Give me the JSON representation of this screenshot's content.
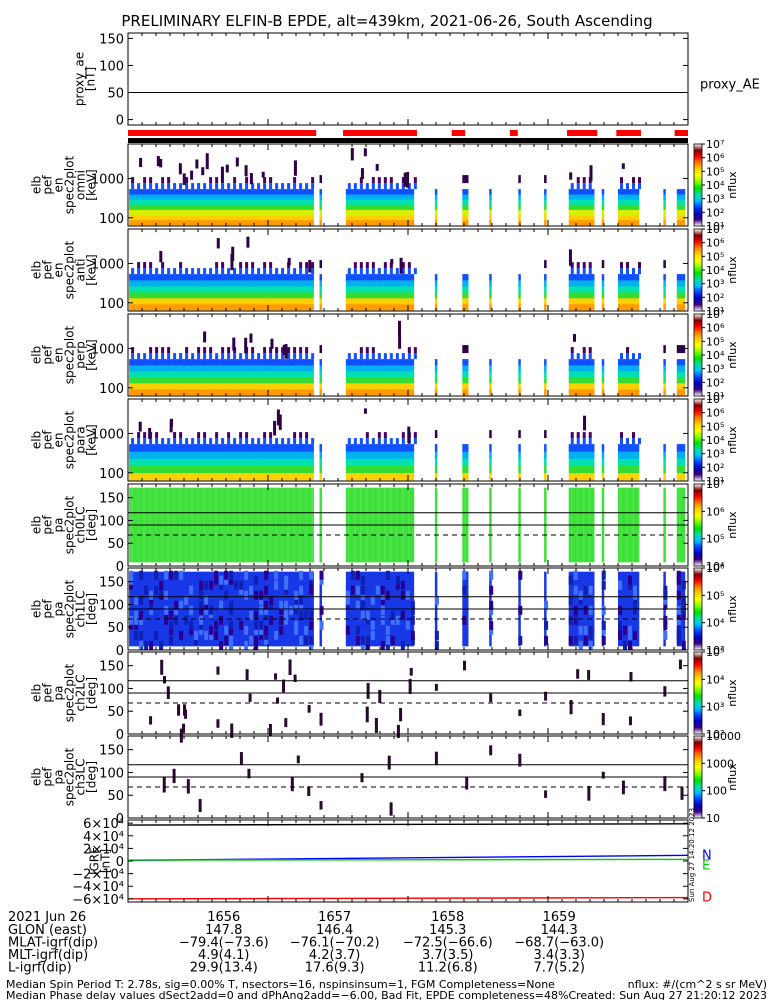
{
  "chart_data": {
    "type": "heatmap",
    "title": "PRELIMINARY ELFIN-B EPDE, alt=439km, 2021-06-26, South Ascending",
    "x_time_labels": [
      "1656",
      "1657",
      "1658",
      "1659"
    ],
    "proxy_ae": {
      "ylabel_lines": [
        "proxy_ae",
        "[nT]"
      ],
      "ticks": [
        "150",
        "100",
        "50",
        "0"
      ],
      "ylim": [
        -10,
        160
      ],
      "value": 50,
      "legend": "proxy_AE",
      "line_color": "#000000"
    },
    "coverage_bar": {
      "color": "#ff0000",
      "segments": [
        [
          0.0,
          0.336
        ],
        [
          0.384,
          0.516
        ],
        [
          0.578,
          0.602
        ],
        [
          0.682,
          0.696
        ],
        [
          0.784,
          0.838
        ],
        [
          0.872,
          0.916
        ],
        [
          0.976,
          1.0
        ]
      ]
    },
    "data_segments": [
      [
        0.002,
        0.332
      ],
      [
        0.342,
        0.343
      ],
      [
        0.389,
        0.511
      ],
      [
        0.548,
        0.551
      ],
      [
        0.597,
        0.608
      ],
      [
        0.645,
        0.648
      ],
      [
        0.697,
        0.7
      ],
      [
        0.743,
        0.746
      ],
      [
        0.787,
        0.833
      ],
      [
        0.846,
        0.849
      ],
      [
        0.875,
        0.913
      ],
      [
        0.956,
        0.959
      ],
      [
        0.98,
        0.995
      ]
    ],
    "energy_panels": [
      {
        "ylabel_lines": [
          "elb",
          "pef",
          "en",
          "spec2plot",
          "omni",
          "[keV]"
        ],
        "ticks": [
          "1000",
          "100"
        ],
        "cb_ticks": [
          "10⁷",
          "10⁶",
          "10⁵",
          "10⁴",
          "10³",
          "10²",
          "10¹"
        ],
        "cb_label": "nflux",
        "layers": [
          "#ff9a00",
          "#ffd000",
          "#d8f000",
          "#33dd33",
          "#00e0b0",
          "#00b0f0",
          "#1050ff"
        ],
        "speckle": 0.09
      },
      {
        "ylabel_lines": [
          "elb",
          "pef",
          "en",
          "spec2plot",
          "anti",
          "[keV]"
        ],
        "ticks": [
          "1000",
          "100"
        ],
        "cb_ticks": [
          "10⁷",
          "10⁶",
          "10⁵",
          "10⁴",
          "10³",
          "10²",
          "10¹"
        ],
        "cb_label": "nflux",
        "layers": [
          "#ff9a00",
          "#ffd000",
          "#33dd33",
          "#00e0b0",
          "#00b0f0",
          "#1050ff"
        ],
        "speckle": 0.04
      },
      {
        "ylabel_lines": [
          "elb",
          "pef",
          "en",
          "spec2plot",
          "perp",
          "[keV]"
        ],
        "ticks": [
          "1000",
          "100"
        ],
        "cb_ticks": [
          "10⁷",
          "10⁶",
          "10⁵",
          "10⁴",
          "10³",
          "10²",
          "10¹"
        ],
        "cb_label": "nflux",
        "layers": [
          "#ff9a00",
          "#ffd000",
          "#33dd33",
          "#00e0b0",
          "#00b0f0",
          "#1050ff"
        ],
        "speckle": 0.04
      },
      {
        "ylabel_lines": [
          "elb",
          "pef",
          "en",
          "spec2plot",
          "para",
          "[keV]"
        ],
        "ticks": [
          "1000",
          "100"
        ],
        "cb_ticks": [
          "10⁷",
          "10⁶",
          "10⁵",
          "10⁴",
          "10³",
          "10²",
          "10¹"
        ],
        "cb_label": "nflux",
        "layers": [
          "#ffd000",
          "#33dd33",
          "#00e0b0",
          "#00b0f0",
          "#1050ff"
        ],
        "speckle": 0.04
      }
    ],
    "pitch_panels": [
      {
        "ylabel_lines": [
          "elb",
          "pef",
          "pa",
          "spec2plot",
          "ch0LC",
          "[deg]"
        ],
        "ticks": [
          "150",
          "100",
          "50",
          "0"
        ],
        "ylim": [
          0,
          180
        ],
        "cb_ticks": [
          "10⁷",
          "10⁶",
          "10⁵",
          "10⁴"
        ],
        "cb_label": "nflux",
        "fill": "#3fe03a",
        "style": "solid"
      },
      {
        "ylabel_lines": [
          "elb",
          "pef",
          "pa",
          "spec2plot",
          "ch1LC",
          "[deg]"
        ],
        "ticks": [
          "150",
          "100",
          "50",
          "0"
        ],
        "ylim": [
          0,
          180
        ],
        "cb_ticks": [
          "10⁶",
          "10⁵",
          "10⁴",
          "10³"
        ],
        "cb_label": "nflux",
        "fill": "#1838e8",
        "style": "mottled"
      },
      {
        "ylabel_lines": [
          "elb",
          "pef",
          "pa",
          "spec2plot",
          "ch2LC",
          "[deg]"
        ],
        "ticks": [
          "150",
          "100",
          "50",
          "0"
        ],
        "ylim": [
          0,
          180
        ],
        "cb_ticks": [
          "10⁵",
          "10⁴",
          "10³",
          "10²"
        ],
        "cb_label": "nflux",
        "fill": "#2a0830",
        "style": "sparse"
      },
      {
        "ylabel_lines": [
          "elb",
          "pef",
          "pa",
          "spec2plot",
          "ch3LC",
          "[deg]"
        ],
        "ticks": [
          "150",
          "100",
          "50",
          "0"
        ],
        "ylim": [
          0,
          180
        ],
        "cb_ticks": [
          "10000",
          "1000",
          "100",
          "10"
        ],
        "cb_label": "nflux",
        "fill": "#2a0830",
        "style": "veryspare"
      }
    ],
    "pitch_lines": {
      "solid": [
        90,
        117
      ],
      "dashed": 68
    },
    "igrf": {
      "ylabel_lines": [
        "IGRF",
        "[nT]"
      ],
      "ticks": [
        "6×10⁴",
        "4×10⁴",
        "2×10⁴",
        "0",
        "−2×10⁴",
        "−4×10⁴",
        "−6×10⁴"
      ],
      "ylim": [
        -65000,
        65000
      ],
      "series": [
        {
          "name": "N",
          "color": "#0000ff",
          "values_start_end": [
            1000,
            9000
          ]
        },
        {
          "name": "E",
          "color": "#00cc00",
          "values_start_end": [
            1500,
            2500
          ]
        },
        {
          "name": "D",
          "color": "#ff0000",
          "values_start_end": [
            -60000,
            -58000
          ]
        },
        {
          "color": "#000000",
          "values_start_end": [
            57000,
            59000
          ]
        }
      ],
      "vertical_stamp": "Sun Aug 27 14:20:12 2023"
    },
    "colorbar_gradient": [
      "#ffffff",
      "#800000",
      "#ff0000",
      "#ff8000",
      "#ffd000",
      "#ffff00",
      "#80ff00",
      "#00e000",
      "#00e0a0",
      "#00c0ff",
      "#0040ff",
      "#0000c0",
      "#400080",
      "#ffffff"
    ]
  },
  "footer": {
    "date_label": "2021 Jun 26",
    "rows": [
      {
        "label": "GLON (east)",
        "values": [
          "147.8",
          "146.4",
          "145.3",
          "144.3"
        ]
      },
      {
        "label": "MLAT-igrf(dip)",
        "values": [
          "−79.4(−73.6)",
          "−76.1(−70.2)",
          "−72.5(−66.6)",
          "−68.7(−63.0)"
        ]
      },
      {
        "label": "MLT-igrf(dip)",
        "values": [
          "4.9(4.1)",
          "4.2(3.7)",
          "3.7(3.5)",
          "3.4(3.3)"
        ]
      },
      {
        "label": "L-igrf(dip)",
        "values": [
          "29.9(13.4)",
          "17.6(9.3)",
          "11.2(6.8)",
          "7.7(5.2)"
        ]
      }
    ],
    "note_line1": "Median Spin Period T: 2.78s, sig=0.00% T, nsectors=16, nspinsinsum=1, FGM Completeness=None",
    "note_line2": "Median Phase delay values dSect2add=0 and dPhAng2add=−6.00, Bad Fit, EPDE completeness=48%",
    "units": "nflux: #/(cm^2 s sr MeV)",
    "created": "Created: Sun Aug 27 21:20:12 2023"
  }
}
